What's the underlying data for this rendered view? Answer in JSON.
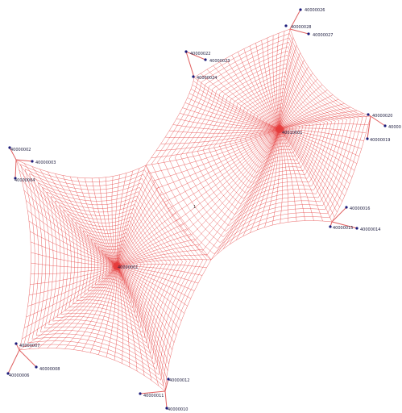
{
  "diagram": {
    "nodes": {
      "n26": "40000026",
      "n28": "40000028",
      "n27": "40000027",
      "n22": "40000022",
      "n23": "40000023",
      "n24": "40000024",
      "n20": "40000020",
      "n_right": "40000",
      "n19": "40000019",
      "n02": "40000002",
      "n03": "40000003",
      "n04": "40000004",
      "n16": "40000016",
      "n15": "40000015",
      "n14": "40000014",
      "n07": "40000007",
      "n08": "40000008",
      "n06": "40000006",
      "n12": "40000012",
      "n11": "40000011",
      "n10": "40000010",
      "center_top": "40010001",
      "center_bottom": "40000001"
    },
    "mid_label": "1"
  },
  "colors": {
    "mesh": "#e53b3b",
    "node": "#1a1a7a"
  }
}
